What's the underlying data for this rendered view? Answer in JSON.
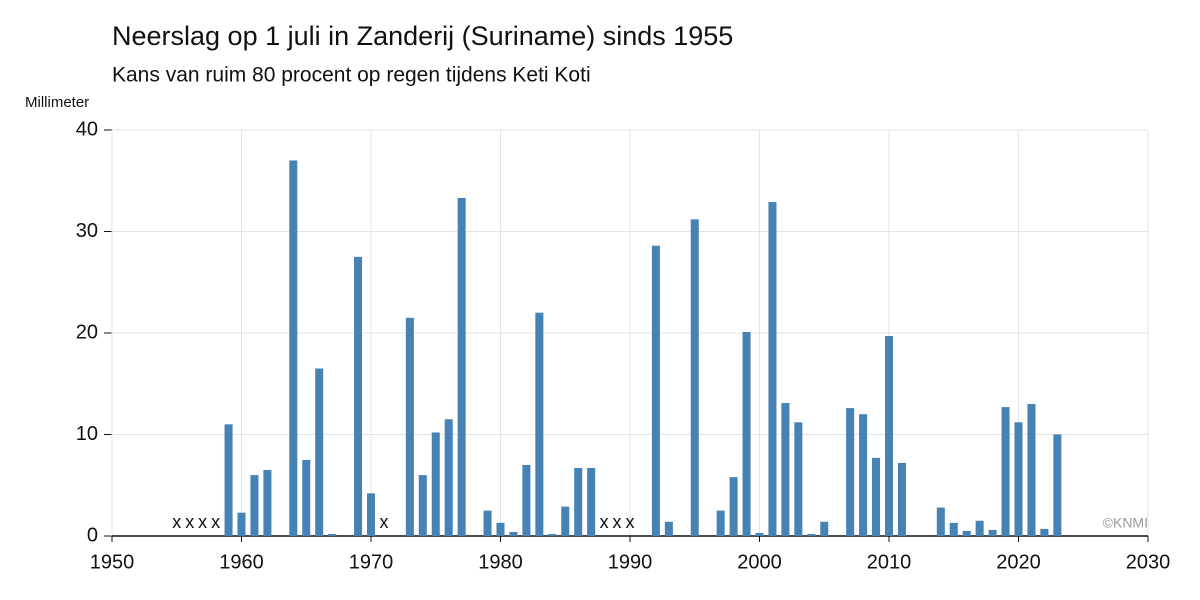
{
  "chart_data": {
    "type": "bar",
    "title": "Neerslag op 1 juli in Zanderij (Suriname) sinds 1955",
    "subtitle": "Kans van ruim 80 procent op regen tijdens Keti Koti",
    "y_label": "Millimeter",
    "credit": "©KNMI",
    "missing_marker": "x",
    "color": "#4682b4",
    "x": [
      1955,
      1956,
      1957,
      1958,
      1959,
      1960,
      1961,
      1962,
      1963,
      1964,
      1965,
      1966,
      1967,
      1968,
      1969,
      1970,
      1971,
      1972,
      1973,
      1974,
      1975,
      1976,
      1977,
      1978,
      1979,
      1980,
      1981,
      1982,
      1983,
      1984,
      1985,
      1986,
      1987,
      1988,
      1989,
      1990,
      1991,
      1992,
      1993,
      1994,
      1995,
      1996,
      1997,
      1998,
      1999,
      2000,
      2001,
      2002,
      2003,
      2004,
      2005,
      2006,
      2007,
      2008,
      2009,
      2010,
      2011,
      2012,
      2013,
      2014,
      2015,
      2016,
      2017,
      2018,
      2019,
      2020,
      2021,
      2022,
      2023
    ],
    "values": [
      null,
      null,
      null,
      null,
      11.0,
      2.3,
      6.0,
      6.5,
      0,
      37.0,
      7.5,
      16.5,
      0.2,
      0,
      27.5,
      4.2,
      null,
      0,
      21.5,
      6.0,
      10.2,
      11.5,
      33.3,
      0,
      2.5,
      1.3,
      0.4,
      7.0,
      22.0,
      0.2,
      2.9,
      6.7,
      6.7,
      null,
      null,
      null,
      0,
      28.6,
      1.4,
      0,
      31.2,
      0,
      2.5,
      5.8,
      20.1,
      0.3,
      32.9,
      13.1,
      11.2,
      0.2,
      1.4,
      0,
      12.6,
      12.0,
      7.7,
      19.7,
      7.2,
      0,
      0,
      2.8,
      1.3,
      0.5,
      1.5,
      0.6,
      12.7,
      11.2,
      13.0,
      0.7,
      10.0
    ],
    "xlim": [
      1950,
      2030
    ],
    "xticks": [
      1950,
      1960,
      1970,
      1980,
      1990,
      2000,
      2010,
      2020,
      2030
    ],
    "ylim": [
      0,
      40
    ],
    "yticks": [
      0,
      10,
      20,
      30,
      40
    ],
    "grid": true
  }
}
